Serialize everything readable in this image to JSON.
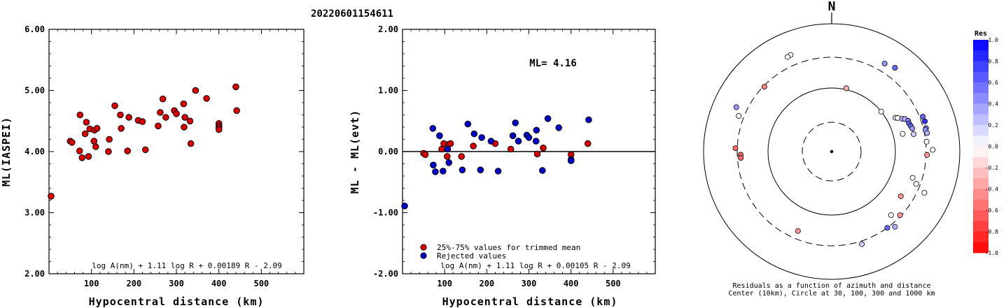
{
  "figure_title": "20220601154611",
  "chart_data": [
    {
      "type": "scatter",
      "panel": "left",
      "xlabel": "Hypocentral distance (km)",
      "ylabel": "ML(IASPEI)",
      "xlim": [
        0,
        600
      ],
      "ylim": [
        2.0,
        6.0
      ],
      "x_ticks": [
        "100",
        "200",
        "300",
        "400",
        "500"
      ],
      "y_ticks": [
        "2.00",
        "3.00",
        "4.00",
        "5.00",
        "6.00"
      ],
      "formula": "log A(nm) + 1.11 log R + 0.00189 R - 2.09",
      "point_color": "#dd0000",
      "series": [
        {
          "points": [
            [
              5,
              3.27
            ],
            [
              50,
              4.17
            ],
            [
              54,
              4.15
            ],
            [
              72,
              4.01
            ],
            [
              73,
              4.6
            ],
            [
              78,
              3.9
            ],
            [
              85,
              4.29
            ],
            [
              88,
              4.48
            ],
            [
              93,
              3.92
            ],
            [
              96,
              4.37
            ],
            [
              106,
              4.17
            ],
            [
              107,
              4.35
            ],
            [
              110,
              4.08
            ],
            [
              113,
              4.38
            ],
            [
              140,
              4.0
            ],
            [
              142,
              4.2
            ],
            [
              155,
              4.75
            ],
            [
              168,
              4.6
            ],
            [
              170,
              4.38
            ],
            [
              185,
              4.01
            ],
            [
              188,
              4.56
            ],
            [
              210,
              4.51
            ],
            [
              220,
              4.49
            ],
            [
              227,
              4.03
            ],
            [
              257,
              4.42
            ],
            [
              262,
              4.64
            ],
            [
              268,
              4.86
            ],
            [
              275,
              4.56
            ],
            [
              295,
              4.67
            ],
            [
              300,
              4.62
            ],
            [
              317,
              4.78
            ],
            [
              318,
              4.4
            ],
            [
              320,
              4.56
            ],
            [
              332,
              4.5
            ],
            [
              334,
              4.13
            ],
            [
              345,
              5.0
            ],
            [
              371,
              4.87
            ],
            [
              400,
              4.46
            ],
            [
              400,
              4.42
            ],
            [
              400,
              4.39
            ],
            [
              400,
              4.36
            ],
            [
              440,
              5.06
            ],
            [
              442,
              4.67
            ]
          ]
        }
      ]
    },
    {
      "type": "scatter",
      "panel": "middle",
      "xlabel": "Hypocentral distance (km)",
      "ylabel": "ML - ML(evt)",
      "xlim": [
        0,
        600
      ],
      "ylim": [
        -2.0,
        2.0
      ],
      "x_ticks": [
        "100",
        "200",
        "300",
        "400",
        "500"
      ],
      "y_ticks": [
        "-2.00",
        "-1.00",
        "0.00",
        "1.00",
        "2.00"
      ],
      "annotation": "ML= 4.16",
      "formula": "log A(nm) + 1.11 log R + 0.00105 R - 2.09",
      "reference_line_y": 0.0,
      "series": [
        {
          "name": "25%-75% values for trimmed mean",
          "color": "#dd0000",
          "points": [
            [
              50,
              -0.03
            ],
            [
              54,
              -0.05
            ],
            [
              93,
              0.04
            ],
            [
              98,
              0.13
            ],
            [
              106,
              -0.08
            ],
            [
              110,
              0.12
            ],
            [
              114,
              0.13
            ],
            [
              140,
              -0.08
            ],
            [
              168,
              0.09
            ],
            [
              220,
              0.13
            ],
            [
              257,
              0.04
            ],
            [
              320,
              -0.04
            ],
            [
              334,
              0.06
            ],
            [
              400,
              -0.05
            ],
            [
              440,
              0.13
            ]
          ]
        },
        {
          "name": "Rejected values",
          "color": "#0000cc",
          "points": [
            [
              5,
              -0.89
            ],
            [
              72,
              0.38
            ],
            [
              73,
              -0.22
            ],
            [
              78,
              -0.33
            ],
            [
              88,
              0.26
            ],
            [
              96,
              -0.32
            ],
            [
              107,
              0.04
            ],
            [
              110,
              -0.18
            ],
            [
              142,
              -0.3
            ],
            [
              155,
              0.45
            ],
            [
              170,
              0.29
            ],
            [
              185,
              -0.3
            ],
            [
              188,
              0.23
            ],
            [
              210,
              0.17
            ],
            [
              227,
              -0.32
            ],
            [
              262,
              0.26
            ],
            [
              268,
              0.47
            ],
            [
              275,
              0.17
            ],
            [
              295,
              0.27
            ],
            [
              300,
              0.23
            ],
            [
              317,
              0.17
            ],
            [
              318,
              0.35
            ],
            [
              332,
              -0.31
            ],
            [
              345,
              0.54
            ],
            [
              371,
              0.39
            ],
            [
              400,
              -0.13
            ],
            [
              400,
              -0.15
            ],
            [
              442,
              0.52
            ]
          ]
        }
      ]
    },
    {
      "type": "polar-scatter",
      "panel": "right",
      "north_label": "N",
      "caption_line1": "Residuals as a function of azimuth and distance",
      "caption_line2": "Center (10km), Circle at 30, 100, 300 and 1000 km",
      "rings_km": [
        30,
        100,
        300,
        1000
      ],
      "colorbar_title": "Res",
      "colorbar_ticks": [
        "1.0",
        "0.8",
        "0.6",
        "0.4",
        "0.2",
        "0.0",
        "-0.2",
        "-0.4",
        "-0.6",
        "-0.8",
        "-1.0"
      ],
      "colorbar_range": [
        -1.0,
        1.0
      ],
      "positive_color": "#0000ff",
      "negative_color": "#ff0000",
      "stations": [
        {
          "az": 337,
          "dist": 440,
          "res": 0.0
        },
        {
          "az": 335,
          "dist": 430,
          "res": 0.0
        },
        {
          "az": 314,
          "dist": 290,
          "res": -0.5
        },
        {
          "az": 13,
          "dist": 105,
          "res": -0.3
        },
        {
          "az": 31,
          "dist": 405,
          "res": 0.4
        },
        {
          "az": 37,
          "dist": 440,
          "res": 0.6
        },
        {
          "az": 295,
          "dist": 440,
          "res": 0.4
        },
        {
          "az": 291,
          "dist": 360,
          "res": 0.0
        },
        {
          "az": 272,
          "dist": 320,
          "res": -0.6
        },
        {
          "az": 268,
          "dist": 265,
          "res": -0.6
        },
        {
          "az": 266,
          "dist": 265,
          "res": -0.6
        },
        {
          "az": 51,
          "dist": 100,
          "res": 0.0
        },
        {
          "az": 62,
          "dist": 135,
          "res": 0.1
        },
        {
          "az": 63,
          "dist": 145,
          "res": 0.0
        },
        {
          "az": 65,
          "dist": 165,
          "res": 0.3
        },
        {
          "az": 66,
          "dist": 180,
          "res": 0.3
        },
        {
          "az": 68,
          "dist": 195,
          "res": 0.5
        },
        {
          "az": 70,
          "dist": 195,
          "res": 0.6
        },
        {
          "az": 72,
          "dist": 200,
          "res": 0.6
        },
        {
          "az": 74,
          "dist": 205,
          "res": 0.4
        },
        {
          "az": 78,
          "dist": 205,
          "res": 0.2
        },
        {
          "az": 76,
          "dist": 140,
          "res": 0.0
        },
        {
          "az": 76,
          "dist": 330,
          "res": 0.5
        },
        {
          "az": 72,
          "dist": 340,
          "res": 0.8
        },
        {
          "az": 69,
          "dist": 335,
          "res": 0.6
        },
        {
          "az": 77,
          "dist": 320,
          "res": 0.4
        },
        {
          "az": 79,
          "dist": 330,
          "res": 0.3
        },
        {
          "az": 84,
          "dist": 310,
          "res": 0.0
        },
        {
          "az": 89,
          "dist": 380,
          "res": 0.0
        },
        {
          "az": 92,
          "dist": 310,
          "res": -0.4
        },
        {
          "az": 111,
          "dist": 260,
          "res": 0.0
        },
        {
          "az": 108,
          "dist": 215,
          "res": 0.0
        },
        {
          "az": 114,
          "dist": 385,
          "res": 0.0
        },
        {
          "az": 123,
          "dist": 195,
          "res": -0.4
        },
        {
          "az": 133,
          "dist": 290,
          "res": -0.4
        },
        {
          "az": 137,
          "dist": 230,
          "res": 0.0
        },
        {
          "az": 140,
          "dist": 345,
          "res": 0.3
        },
        {
          "az": 144,
          "dist": 300,
          "res": 0.6
        },
        {
          "az": 162,
          "dist": 335,
          "res": 0.2
        },
        {
          "az": 203,
          "dist": 225,
          "res": -0.4
        }
      ]
    }
  ]
}
